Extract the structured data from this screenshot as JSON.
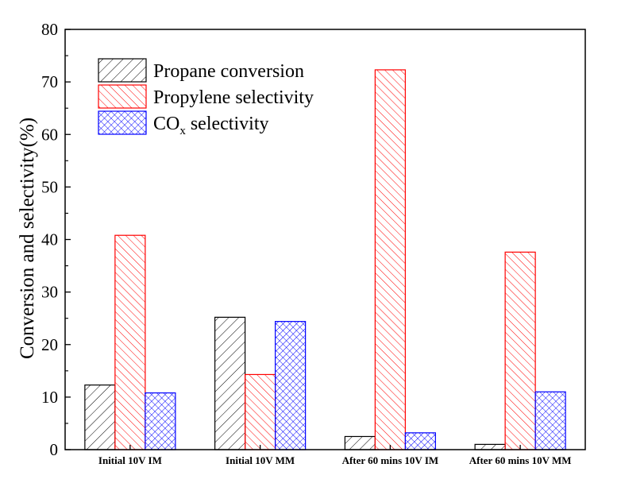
{
  "chart_data": {
    "type": "bar",
    "title": "",
    "xlabel": "",
    "ylabel": "Conversion and selectivity(%)",
    "ylim": [
      0,
      80
    ],
    "yticks": [
      0,
      10,
      20,
      30,
      40,
      50,
      60,
      70,
      80
    ],
    "categories": [
      "Initial 10V IM",
      "Initial 10V MM",
      "After 60 mins 10V IM",
      "After 60 mins 10V MM"
    ],
    "legend_position": "top-left",
    "series": [
      {
        "name": "Propane conversion",
        "color": "#000000",
        "pattern": "diagonal-hatch",
        "values": [
          12.3,
          25.2,
          2.5,
          1.0
        ]
      },
      {
        "name": "Propylene selectivity",
        "color": "#ff0000",
        "pattern": "reverse-diagonal-hatch",
        "values": [
          40.8,
          14.3,
          72.3,
          37.6
        ]
      },
      {
        "name": "CO",
        "subscript": "x",
        "suffix": " selectivity",
        "color": "#0000ff",
        "pattern": "cross-hatch",
        "values": [
          10.8,
          24.4,
          3.2,
          11.0
        ]
      }
    ]
  }
}
